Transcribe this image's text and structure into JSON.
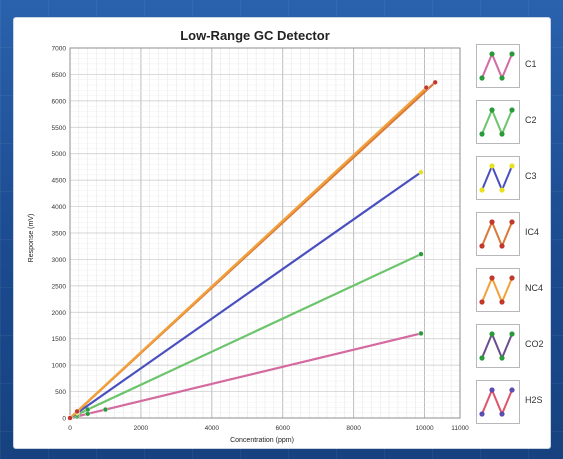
{
  "chart_data": {
    "type": "line",
    "title": "Low-Range GC Detector",
    "xlabel": "Concentration (ppm)",
    "ylabel": "Response (mV)",
    "xlim": [
      0,
      11000
    ],
    "ylim": [
      0,
      7000
    ],
    "xticks": [
      "0",
      "2000",
      "4000",
      "6000",
      "8000",
      "10000",
      "11000"
    ],
    "yticks": [
      "0",
      "500",
      "1000",
      "1500",
      "2000",
      "2500",
      "3000",
      "3500",
      "4000",
      "4500",
      "5000",
      "5500",
      "6000",
      "6500",
      "7000"
    ],
    "grid": true,
    "legend_position": "right",
    "series": [
      {
        "name": "C1",
        "color": "#d46aa0",
        "marker": "#2a9a3a",
        "x": [
          0,
          200,
          500,
          1000,
          9900
        ],
        "y": [
          0,
          30,
          80,
          160,
          1600
        ]
      },
      {
        "name": "C2",
        "color": "#6cc46c",
        "marker": "#2a9a3a",
        "x": [
          0,
          200,
          500,
          9900
        ],
        "y": [
          0,
          60,
          160,
          3100
        ]
      },
      {
        "name": "C3",
        "color": "#4a4fc0",
        "marker": "#e8e020",
        "x": [
          0,
          200,
          9900
        ],
        "y": [
          0,
          95,
          4650
        ]
      },
      {
        "name": "IC4",
        "color": "#d97a3a",
        "marker": "#c0392b",
        "x": [
          0,
          200,
          10300
        ],
        "y": [
          0,
          120,
          6350
        ]
      },
      {
        "name": "NC4",
        "color": "#f2a13a",
        "marker": "#c0392b",
        "x": [
          0,
          200,
          10050
        ],
        "y": [
          0,
          125,
          6250
        ]
      },
      {
        "name": "CO2",
        "color": "#6a4f8c",
        "marker": "#2a9a3a",
        "x": [],
        "y": []
      },
      {
        "name": "H2S",
        "color": "#e0556a",
        "marker": "#5a4fb0",
        "x": [],
        "y": []
      }
    ]
  }
}
